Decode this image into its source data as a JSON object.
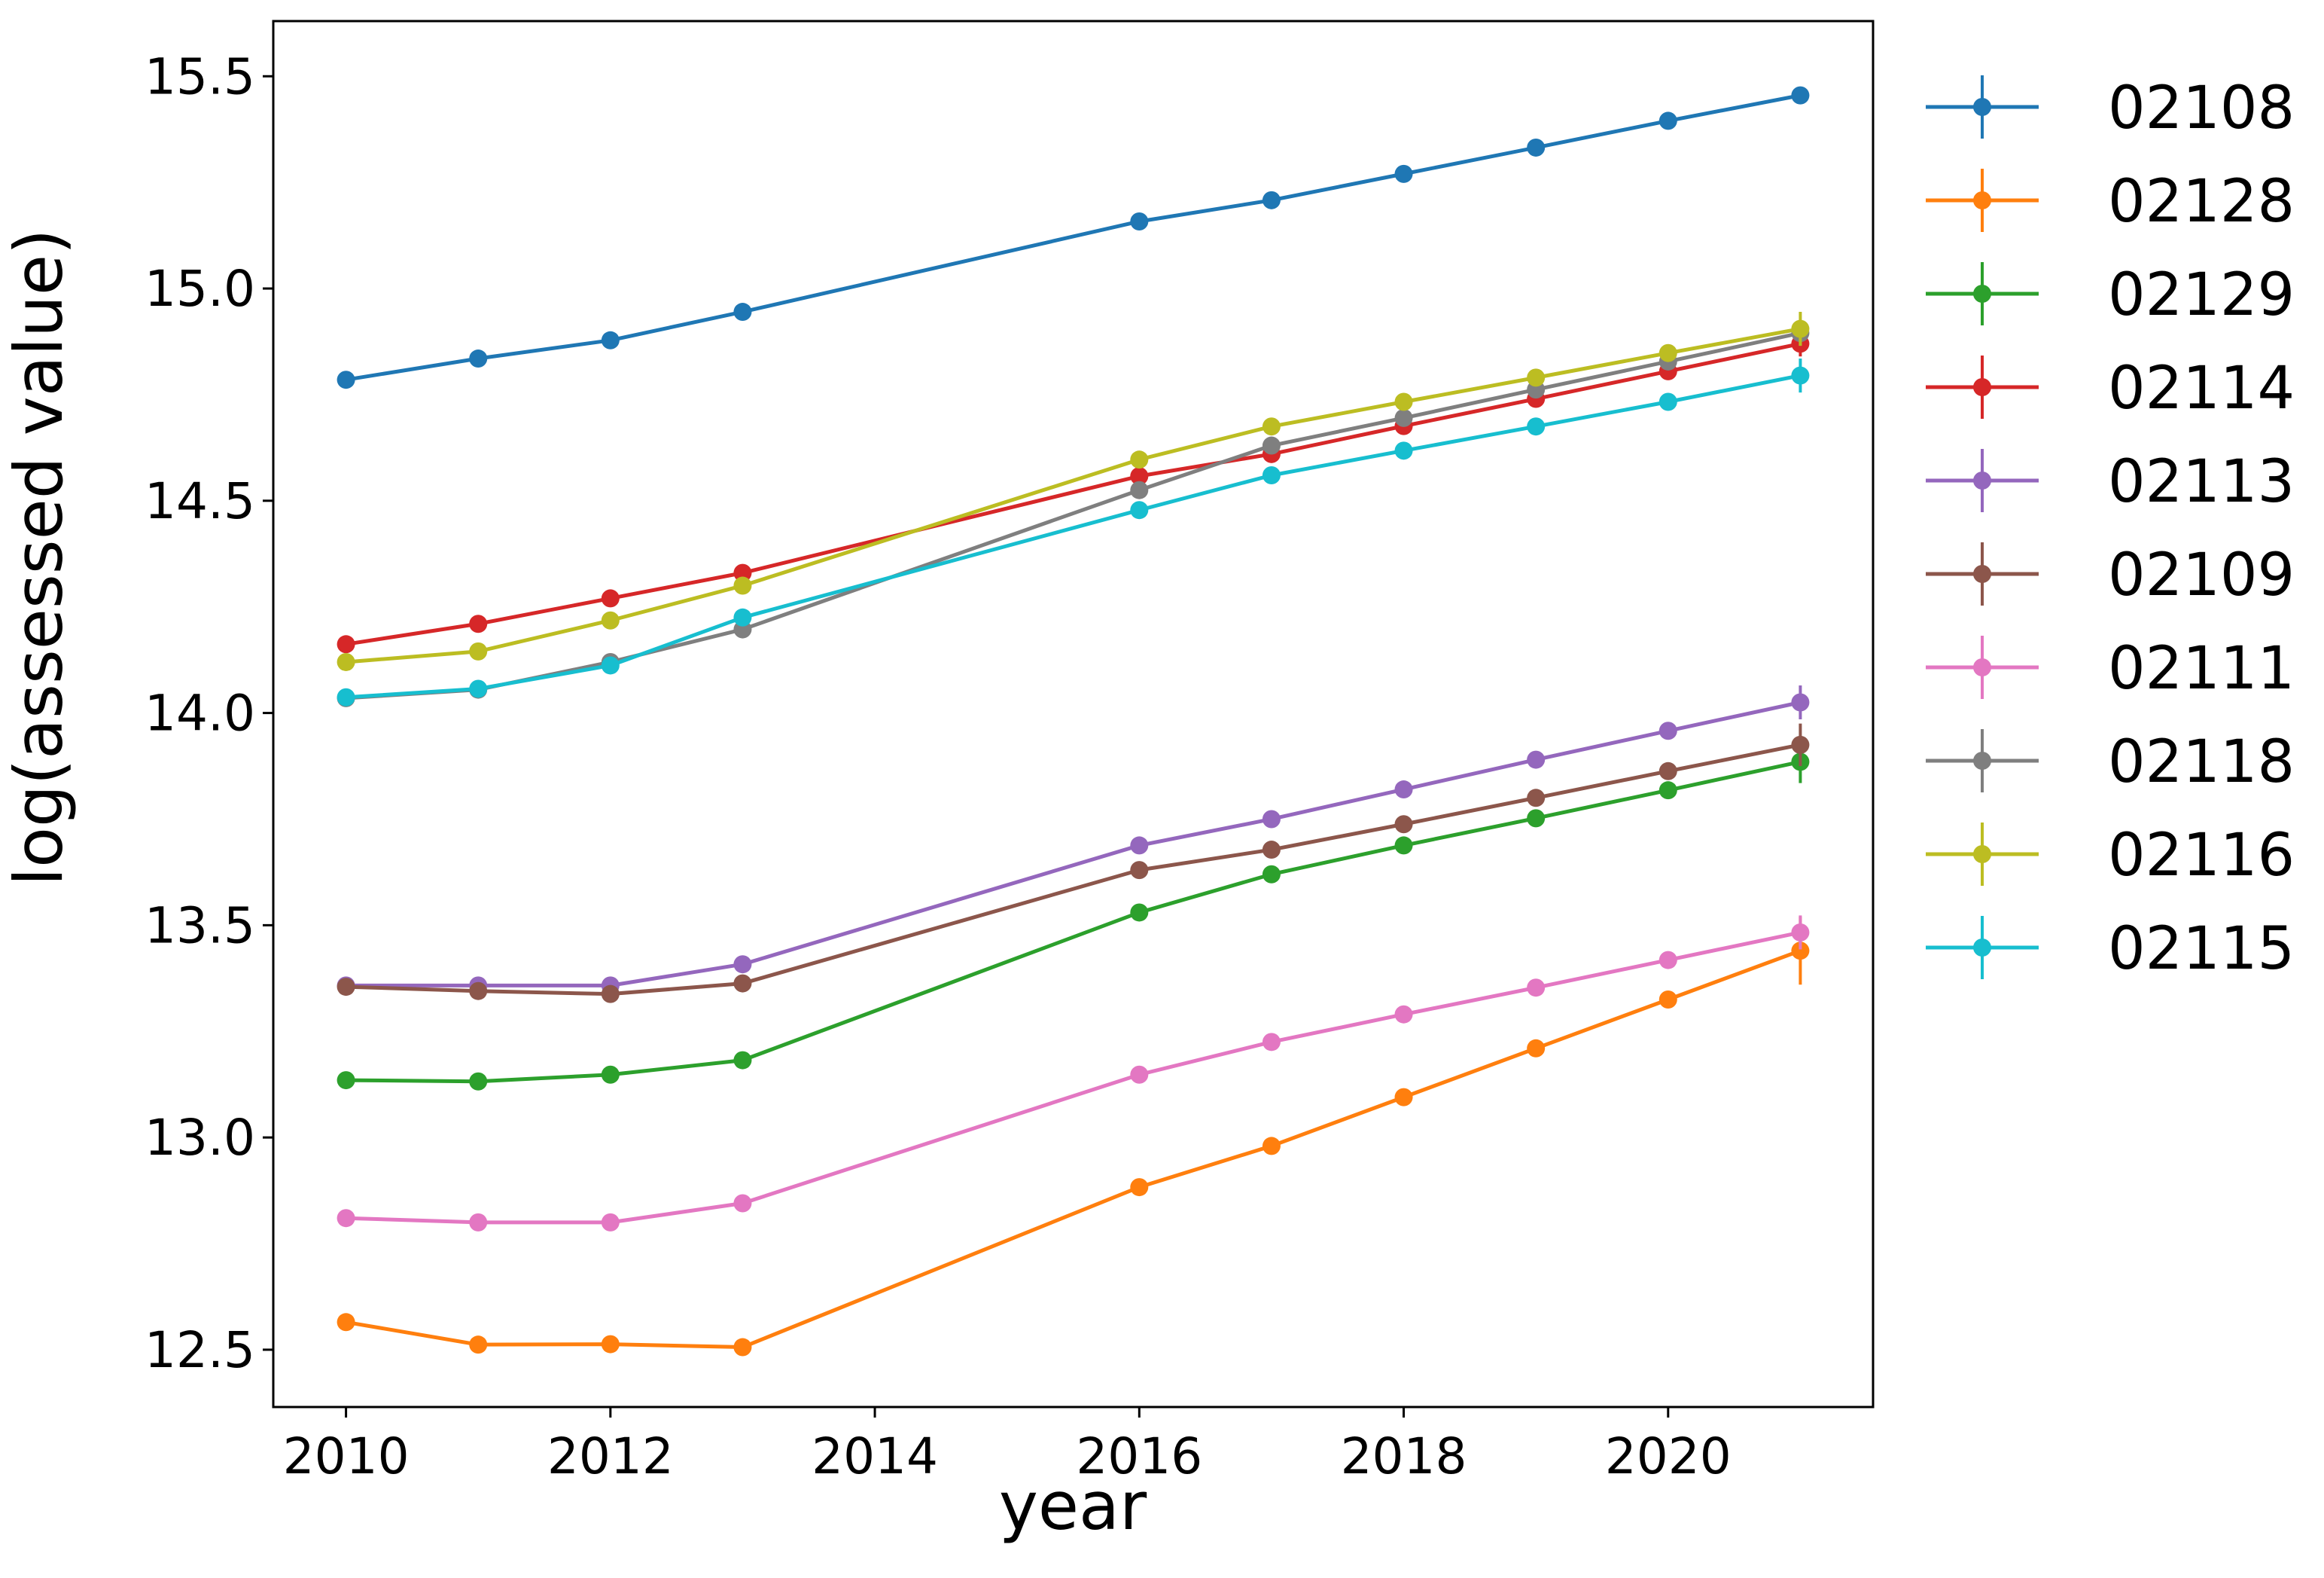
{
  "chart_data": {
    "type": "line",
    "title": "",
    "xlabel": "year",
    "ylabel": "log(assessed value)",
    "xlim": [
      2009.45,
      2021.55
    ],
    "ylim": [
      12.365,
      15.63
    ],
    "xticks": [
      2010,
      2012,
      2014,
      2016,
      2018,
      2020
    ],
    "yticks": [
      12.5,
      13.0,
      13.5,
      14.0,
      14.5,
      15.0,
      15.5
    ],
    "ytick_labels": [
      "12.5",
      "13.0",
      "13.5",
      "14.0",
      "14.5",
      "15.0",
      "15.5"
    ],
    "grid": false,
    "legend": "outside-right",
    "x": [
      2010,
      2011,
      2012,
      2013,
      2016,
      2017,
      2018,
      2019,
      2020,
      2021
    ],
    "series": [
      {
        "name": "02108",
        "color": "#1f77b4",
        "values": [
          14.785,
          14.835,
          14.878,
          14.945,
          15.158,
          15.208,
          15.27,
          15.332,
          15.395,
          15.455
        ],
        "err_last": 0.02
      },
      {
        "name": "02128",
        "color": "#ff7f0e",
        "values": [
          12.565,
          12.512,
          12.513,
          12.506,
          12.883,
          12.98,
          13.095,
          13.21,
          13.325,
          13.44
        ],
        "err_last": 0.08
      },
      {
        "name": "02129",
        "color": "#2ca02c",
        "values": [
          13.135,
          13.132,
          13.148,
          13.182,
          13.53,
          13.62,
          13.688,
          13.752,
          13.818,
          13.885
        ],
        "err_last": 0.05
      },
      {
        "name": "02114",
        "color": "#d62728",
        "values": [
          14.162,
          14.21,
          14.27,
          14.33,
          14.558,
          14.61,
          14.676,
          14.74,
          14.805,
          14.87
        ],
        "err_last": 0.03
      },
      {
        "name": "02113",
        "color": "#9467bd",
        "values": [
          13.358,
          13.358,
          13.358,
          13.408,
          13.688,
          13.75,
          13.82,
          13.89,
          13.958,
          14.025
        ],
        "err_last": 0.04
      },
      {
        "name": "02109",
        "color": "#8c564b",
        "values": [
          13.355,
          13.345,
          13.338,
          13.363,
          13.63,
          13.678,
          13.738,
          13.8,
          13.863,
          13.925
        ],
        "err_last": 0.05
      },
      {
        "name": "02111",
        "color": "#e377c2",
        "values": [
          12.81,
          12.8,
          12.8,
          12.845,
          13.148,
          13.225,
          13.29,
          13.353,
          13.418,
          13.483
        ],
        "err_last": 0.04
      },
      {
        "name": "02118",
        "color": "#7f7f7f",
        "values": [
          14.035,
          14.055,
          14.12,
          14.197,
          14.525,
          14.63,
          14.695,
          14.762,
          14.828,
          14.895
        ],
        "err_last": 0.03
      },
      {
        "name": "02116",
        "color": "#bcbd22",
        "values": [
          14.12,
          14.145,
          14.218,
          14.3,
          14.597,
          14.675,
          14.733,
          14.79,
          14.848,
          14.905
        ],
        "err_last": 0.04
      },
      {
        "name": "02115",
        "color": "#17becf",
        "values": [
          14.037,
          14.057,
          14.112,
          14.225,
          14.478,
          14.56,
          14.618,
          14.675,
          14.733,
          14.795
        ],
        "err_last": 0.04
      }
    ]
  }
}
